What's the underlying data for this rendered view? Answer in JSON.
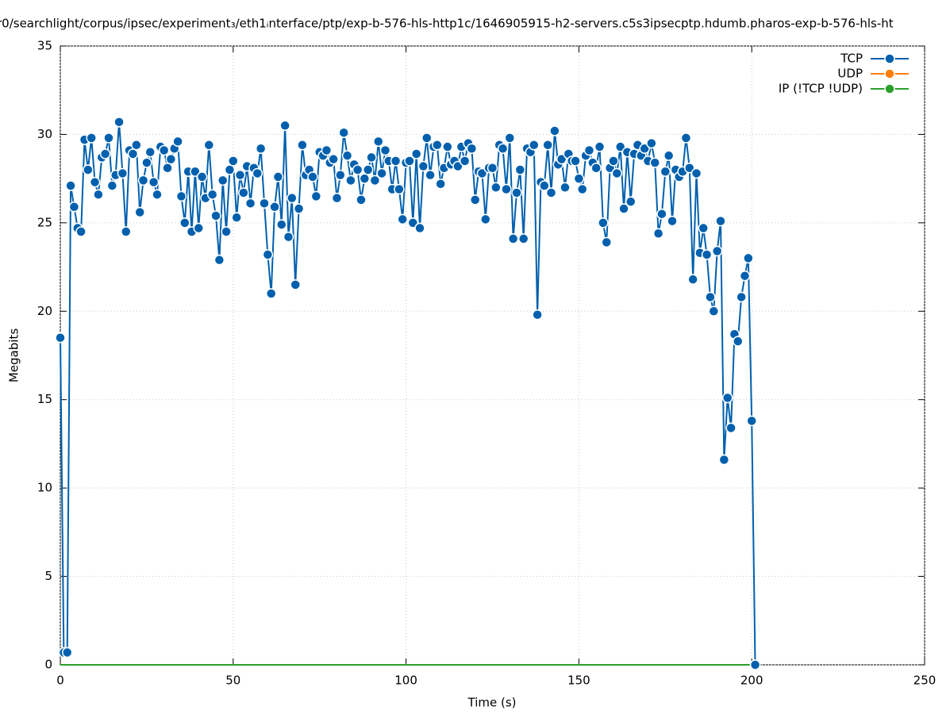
{
  "chart_data": {
    "type": "line",
    "title": "r0/searchlight/corpus/ipsec/experiment₃/eth1ᵢnterface/ptp/exp-b-576-hls-http1c/1646905915-h2-servers.c5s3ipsecptp.hdumb.pharos-exp-b-576-hls-ht",
    "xlabel": "Time (s)",
    "ylabel": "Megabits",
    "xlim": [
      0,
      250
    ],
    "xticks": [
      0,
      50,
      100,
      150,
      200,
      250
    ],
    "ylim": [
      0,
      35
    ],
    "yticks": [
      0,
      5,
      10,
      15,
      20,
      25,
      30,
      35
    ],
    "grid": true,
    "legend": "top-right",
    "x": [
      0,
      1,
      2,
      3,
      4,
      5,
      6,
      7,
      8,
      9,
      10,
      11,
      12,
      13,
      14,
      15,
      16,
      17,
      18,
      19,
      20,
      21,
      22,
      23,
      24,
      25,
      26,
      27,
      28,
      29,
      30,
      31,
      32,
      33,
      34,
      35,
      36,
      37,
      38,
      39,
      40,
      41,
      42,
      43,
      44,
      45,
      46,
      47,
      48,
      49,
      50,
      51,
      52,
      53,
      54,
      55,
      56,
      57,
      58,
      59,
      60,
      61,
      62,
      63,
      64,
      65,
      66,
      67,
      68,
      69,
      70,
      71,
      72,
      73,
      74,
      75,
      76,
      77,
      78,
      79,
      80,
      81,
      82,
      83,
      84,
      85,
      86,
      87,
      88,
      89,
      90,
      91,
      92,
      93,
      94,
      95,
      96,
      97,
      98,
      99,
      100,
      101,
      102,
      103,
      104,
      105,
      106,
      107,
      108,
      109,
      110,
      111,
      112,
      113,
      114,
      115,
      116,
      117,
      118,
      119,
      120,
      121,
      122,
      123,
      124,
      125,
      126,
      127,
      128,
      129,
      130,
      131,
      132,
      133,
      134,
      135,
      136,
      137,
      138,
      139,
      140,
      141,
      142,
      143,
      144,
      145,
      146,
      147,
      148,
      149,
      150,
      151,
      152,
      153,
      154,
      155,
      156,
      157,
      158,
      159,
      160,
      161,
      162,
      163,
      164,
      165,
      166,
      167,
      168,
      169,
      170,
      171,
      172,
      173,
      174,
      175,
      176,
      177,
      178,
      179,
      180,
      181,
      182,
      183,
      184,
      185,
      186,
      187,
      188,
      189,
      190,
      191,
      192,
      193,
      194,
      195,
      196,
      197,
      198,
      199,
      200,
      201
    ],
    "series": [
      {
        "name": "TCP",
        "color": "#0060ad",
        "values": [
          18.5,
          0.7,
          0.7,
          27.1,
          25.9,
          24.7,
          24.5,
          29.7,
          28.0,
          29.8,
          27.3,
          26.6,
          28.7,
          28.9,
          29.8,
          27.1,
          27.7,
          30.7,
          27.8,
          24.5,
          29.1,
          28.9,
          29.4,
          25.6,
          27.4,
          28.4,
          29.0,
          27.3,
          26.6,
          29.3,
          29.1,
          28.1,
          28.6,
          29.2,
          29.6,
          26.5,
          25.0,
          27.9,
          24.5,
          27.9,
          24.7,
          27.6,
          26.4,
          29.4,
          26.6,
          25.4,
          22.9,
          27.4,
          24.5,
          28.0,
          28.5,
          25.3,
          27.7,
          26.7,
          28.2,
          26.1,
          28.1,
          27.8,
          29.2,
          26.1,
          23.2,
          21.0,
          25.9,
          27.6,
          24.9,
          30.5,
          24.2,
          26.4,
          21.5,
          25.8,
          29.4,
          27.7,
          28.0,
          27.6,
          26.5,
          29.0,
          28.8,
          29.1,
          28.4,
          28.6,
          26.4,
          27.7,
          30.1,
          28.8,
          27.4,
          28.3,
          28.0,
          26.3,
          27.5,
          28.0,
          28.7,
          27.4,
          29.6,
          27.8,
          29.1,
          28.5,
          26.9,
          28.5,
          26.9,
          25.2,
          28.4,
          28.5,
          25.0,
          28.9,
          24.7,
          28.2,
          29.8,
          27.7,
          29.3,
          29.4,
          27.2,
          28.1,
          29.3,
          28.3,
          28.5,
          28.2,
          29.3,
          28.5,
          29.5,
          29.2,
          26.3,
          27.9,
          27.8,
          25.2,
          28.1,
          28.1,
          27.0,
          29.4,
          29.2,
          26.9,
          29.8,
          24.1,
          26.7,
          28.0,
          24.1,
          29.2,
          29.0,
          29.4,
          19.8,
          27.3,
          27.1,
          29.4,
          26.7,
          30.2,
          28.3,
          28.6,
          27.0,
          28.9,
          28.5,
          28.5,
          27.5,
          26.9,
          28.8,
          29.1,
          28.4,
          28.1,
          29.3,
          25.0,
          23.9,
          28.1,
          28.5,
          27.8,
          29.3,
          25.8,
          29.0,
          26.2,
          28.9,
          29.4,
          28.8,
          29.2,
          28.5,
          29.5,
          28.4,
          24.4,
          25.5,
          27.9,
          28.8,
          25.1,
          28.0,
          27.6,
          27.9,
          29.8,
          28.1,
          21.8,
          27.8,
          23.3,
          24.7,
          23.2,
          20.8,
          20.0,
          23.4,
          25.1,
          11.6,
          15.1,
          13.4,
          18.7,
          18.3,
          20.8,
          22.0,
          23.0,
          13.8,
          0
        ]
      },
      {
        "name": "UDP",
        "color": "#ff7f0e",
        "values": [
          0,
          0,
          0,
          0,
          0,
          0,
          0,
          0,
          0,
          0,
          0,
          0,
          0,
          0,
          0,
          0,
          0,
          0,
          0,
          0,
          0,
          0,
          0,
          0,
          0,
          0,
          0,
          0,
          0,
          0,
          0,
          0,
          0,
          0,
          0,
          0,
          0,
          0,
          0,
          0,
          0,
          0,
          0,
          0,
          0,
          0,
          0,
          0,
          0,
          0,
          0,
          0,
          0,
          0,
          0,
          0,
          0,
          0,
          0,
          0,
          0,
          0,
          0,
          0,
          0,
          0,
          0,
          0,
          0,
          0,
          0,
          0,
          0,
          0,
          0,
          0,
          0,
          0,
          0,
          0,
          0,
          0,
          0,
          0,
          0,
          0,
          0,
          0,
          0,
          0,
          0,
          0,
          0,
          0,
          0,
          0,
          0,
          0,
          0,
          0,
          0,
          0,
          0,
          0,
          0,
          0,
          0,
          0,
          0,
          0,
          0,
          0,
          0,
          0,
          0,
          0,
          0,
          0,
          0,
          0,
          0,
          0,
          0,
          0,
          0,
          0,
          0,
          0,
          0,
          0,
          0,
          0,
          0,
          0,
          0,
          0,
          0,
          0,
          0,
          0,
          0,
          0,
          0,
          0,
          0,
          0,
          0,
          0,
          0,
          0,
          0,
          0,
          0,
          0,
          0,
          0,
          0,
          0,
          0,
          0,
          0,
          0,
          0,
          0,
          0,
          0,
          0,
          0,
          0,
          0,
          0,
          0,
          0,
          0,
          0,
          0,
          0,
          0,
          0,
          0,
          0,
          0,
          0,
          0,
          0,
          0,
          0,
          0,
          0,
          0,
          0,
          0,
          0,
          0,
          0,
          0,
          0,
          0,
          0,
          0,
          0,
          0
        ]
      },
      {
        "name": "IP (!TCP  !UDP)",
        "color": "#2ca02c",
        "values": [
          0,
          0,
          0,
          0,
          0,
          0,
          0,
          0,
          0,
          0,
          0,
          0,
          0,
          0,
          0,
          0,
          0,
          0,
          0,
          0,
          0,
          0,
          0,
          0,
          0,
          0,
          0,
          0,
          0,
          0,
          0,
          0,
          0,
          0,
          0,
          0,
          0,
          0,
          0,
          0,
          0,
          0,
          0,
          0,
          0,
          0,
          0,
          0,
          0,
          0,
          0,
          0,
          0,
          0,
          0,
          0,
          0,
          0,
          0,
          0,
          0,
          0,
          0,
          0,
          0,
          0,
          0,
          0,
          0,
          0,
          0,
          0,
          0,
          0,
          0,
          0,
          0,
          0,
          0,
          0,
          0,
          0,
          0,
          0,
          0,
          0,
          0,
          0,
          0,
          0,
          0,
          0,
          0,
          0,
          0,
          0,
          0,
          0,
          0,
          0,
          0,
          0,
          0,
          0,
          0,
          0,
          0,
          0,
          0,
          0,
          0,
          0,
          0,
          0,
          0,
          0,
          0,
          0,
          0,
          0,
          0,
          0,
          0,
          0,
          0,
          0,
          0,
          0,
          0,
          0,
          0,
          0,
          0,
          0,
          0,
          0,
          0,
          0,
          0,
          0,
          0,
          0,
          0,
          0,
          0,
          0,
          0,
          0,
          0,
          0,
          0,
          0,
          0,
          0,
          0,
          0,
          0,
          0,
          0,
          0,
          0,
          0,
          0,
          0,
          0,
          0,
          0,
          0,
          0,
          0,
          0,
          0,
          0,
          0,
          0,
          0,
          0,
          0,
          0,
          0,
          0,
          0,
          0,
          0,
          0,
          0,
          0,
          0,
          0,
          0,
          0,
          0,
          0,
          0,
          0,
          0,
          0,
          0,
          0,
          0,
          0,
          0
        ]
      }
    ]
  }
}
